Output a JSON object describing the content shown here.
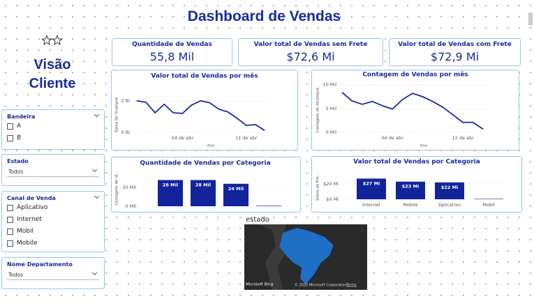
{
  "title": "Dashboard de Vendas",
  "sidebar": {
    "title": "Visão Cliente"
  },
  "filters": [
    {
      "title": "Bandeira",
      "options": [
        "A",
        "B"
      ]
    },
    {
      "title": "Estado",
      "dropdown": "Todos"
    },
    {
      "title": "Canal de Venda",
      "options": [
        "Aplicativo",
        "Internet",
        "Mobil",
        "Mobile"
      ]
    },
    {
      "title": "Nome Departamento",
      "dropdown": "Todos"
    }
  ],
  "kpis": [
    {
      "label": "Quantidade de Vendas",
      "value": "55,8 Mil"
    },
    {
      "label": "Valor total de Vendas sem Frete",
      "value": "$72,6 Mi"
    },
    {
      "label": "Valor total de Vendas com Frete",
      "value": "$72,9 Mi"
    }
  ],
  "charts": [
    {
      "type": "line",
      "title": "Valor total de Vendas por mês",
      "y_label": "Soma de Vcompra",
      "x_label": "Ano",
      "categories": [
        null,
        null,
        null,
        null,
        null,
        "04 de abr",
        null,
        null,
        null,
        null,
        null,
        null,
        "11 de abr",
        null,
        null
      ],
      "values": [
        2.0,
        1.91,
        1.24,
        1.78,
        1.24,
        1.2,
        1.73,
        2.0,
        1.87,
        1.47,
        1.29,
        0.89,
        0.44,
        0.49,
        0.13
      ],
      "ylim": [
        0,
        3
      ],
      "yticks": [
        {
          "value": 0,
          "label": "0 Bi"
        },
        {
          "value": 2,
          "label": "2 Bi"
        }
      ],
      "color": "#1a2a9c"
    },
    {
      "type": "line",
      "title": "Contagem de Vendas por mês",
      "y_label": "Contagem de idcompra",
      "x_label": "Ano",
      "categories": [
        null,
        null,
        null,
        null,
        null,
        "04 de abr",
        null,
        null,
        null,
        null,
        null,
        null,
        "11 de abr",
        null,
        null
      ],
      "values": [
        8.4,
        6.6,
        5.9,
        6.5,
        5.6,
        4.9,
        6.9,
        8.2,
        7.5,
        6.5,
        5.3,
        3.7,
        2.1,
        2.1,
        0.7
      ],
      "ylim": [
        0,
        12
      ],
      "yticks": [
        {
          "value": 0,
          "label": "0 Mil"
        },
        {
          "value": 5,
          "label": "5 Mil"
        },
        {
          "value": 10,
          "label": "10 Mil"
        }
      ],
      "color": "#1a2a9c"
    },
    {
      "type": "bar",
      "title": "Quantidade de Vendas por Categoria",
      "y_label": "Contagem de id...",
      "categories": [
        null,
        null,
        null,
        null
      ],
      "values": [
        28,
        28,
        24,
        0.5
      ],
      "value_labels": [
        "28 Mil",
        "28 Mil",
        "24 Mil",
        null
      ],
      "ylim": [
        0,
        35
      ],
      "yticks": [
        {
          "value": 0,
          "label": "0 Mil"
        },
        {
          "value": 20,
          "label": "20 Mil"
        }
      ],
      "color": "#13249b"
    },
    {
      "type": "bar",
      "title": "Valor total de Vendas por Categoria",
      "y_label": "Soma de Pre...",
      "categories": [
        "Internet",
        "Mobile",
        "Aplicativo",
        "Mobil"
      ],
      "values": [
        27,
        23,
        22,
        0.5
      ],
      "value_labels": [
        "$27 Mi",
        "$23 Mi",
        "$22 Mi",
        null
      ],
      "ylim": [
        0,
        35
      ],
      "yticks": [
        {
          "value": 0,
          "label": "$0 Mi"
        },
        {
          "value": 20,
          "label": "$20 Mi"
        }
      ],
      "color": "#13249b"
    }
  ],
  "map": {
    "title": "estado",
    "logo": "Microsoft Bing",
    "copyright": "© 2025 Microsoft Corporation",
    "terms": "Terms"
  }
}
